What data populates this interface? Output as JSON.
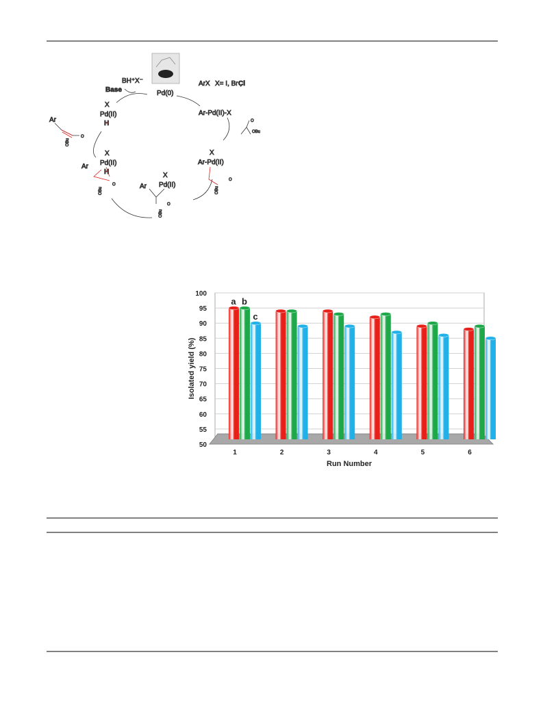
{
  "scheme": {
    "labels": [
      "BH⁺",
      "X⁻",
      "Base",
      "ArX",
      "X= I, Br ,",
      "Cl",
      "Pd(0)",
      "X",
      "Pd(II)",
      "H",
      "Ar",
      "O",
      "OBu",
      "Ar-Pd(II)-X",
      "O",
      "OBu",
      "X",
      "Ar-Pd(II)",
      "O",
      "OBu",
      "Ar",
      "X",
      "Pd(II)",
      "H",
      "O",
      "OBu",
      "Ar",
      "X",
      "Pd(II)",
      "O",
      "OBu"
    ]
  },
  "chart_data": {
    "type": "bar",
    "categories": [
      "1",
      "2",
      "3",
      "4",
      "5",
      "6"
    ],
    "series": [
      {
        "name": "a",
        "color": "#e8201a",
        "values": [
          95,
          94,
          94,
          92,
          89,
          88
        ]
      },
      {
        "name": "b",
        "color": "#1ea84a",
        "values": [
          95,
          94,
          93,
          93,
          90,
          89
        ]
      },
      {
        "name": "c",
        "color": "#22b0e8",
        "values": [
          90,
          89,
          89,
          87,
          86,
          85
        ]
      }
    ],
    "ylim": [
      50,
      100
    ],
    "yticks": [
      50,
      55,
      60,
      65,
      70,
      75,
      80,
      85,
      90,
      95,
      100
    ],
    "y_label": "Isolated yield (%)",
    "x_label": "Run Number",
    "grid": true
  }
}
